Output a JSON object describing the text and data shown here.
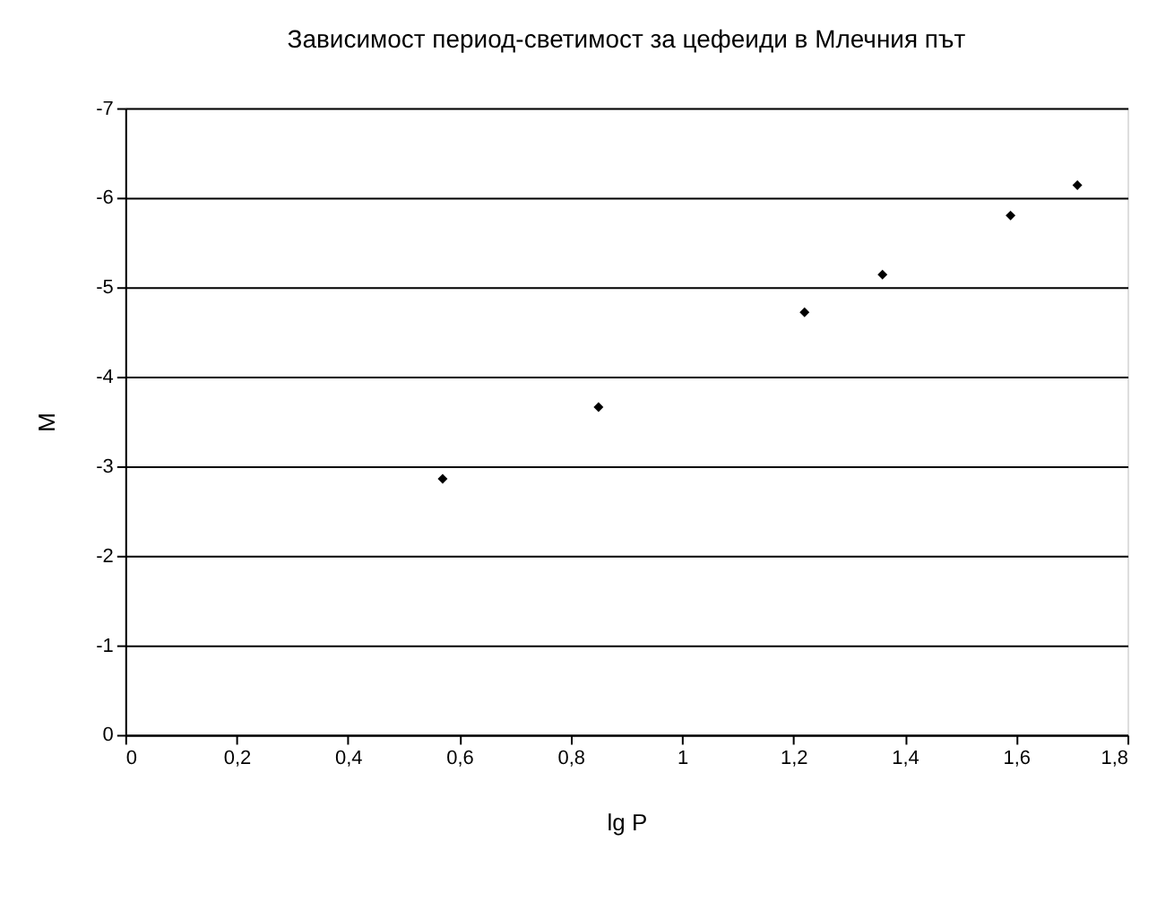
{
  "chart_data": {
    "type": "scatter",
    "title": "Зависимост период-светимост за цефеиди в Млечния път",
    "xlabel": "lg P",
    "ylabel": "M",
    "x": [
      0.57,
      0.85,
      1.22,
      1.36,
      1.59,
      1.71
    ],
    "series": [
      {
        "color": "#000000",
        "values": [
          -2.86,
          -3.66,
          -4.72,
          -5.14,
          -5.8,
          -6.14
        ]
      }
    ],
    "xlim": [
      0,
      1.8
    ],
    "xticks": [
      0,
      {
        "value": 0.2,
        "label": "0,2"
      },
      {
        "value": 0.4,
        "label": "0,4"
      },
      {
        "value": 0.6,
        "label": "0,6"
      },
      {
        "value": 0.8,
        "label": "0,8"
      },
      1,
      {
        "value": 1.2,
        "label": "1,2"
      },
      {
        "value": 1.4,
        "label": "1,4"
      },
      {
        "value": 1.6,
        "label": "1,6"
      },
      {
        "value": 1.8,
        "label": "1,8"
      }
    ],
    "ylim": [
      0,
      -7
    ],
    "yticks": [
      0,
      -1,
      -2,
      -3,
      -4,
      -5,
      -6,
      -7
    ],
    "grid": "y",
    "marker": "diamond"
  }
}
